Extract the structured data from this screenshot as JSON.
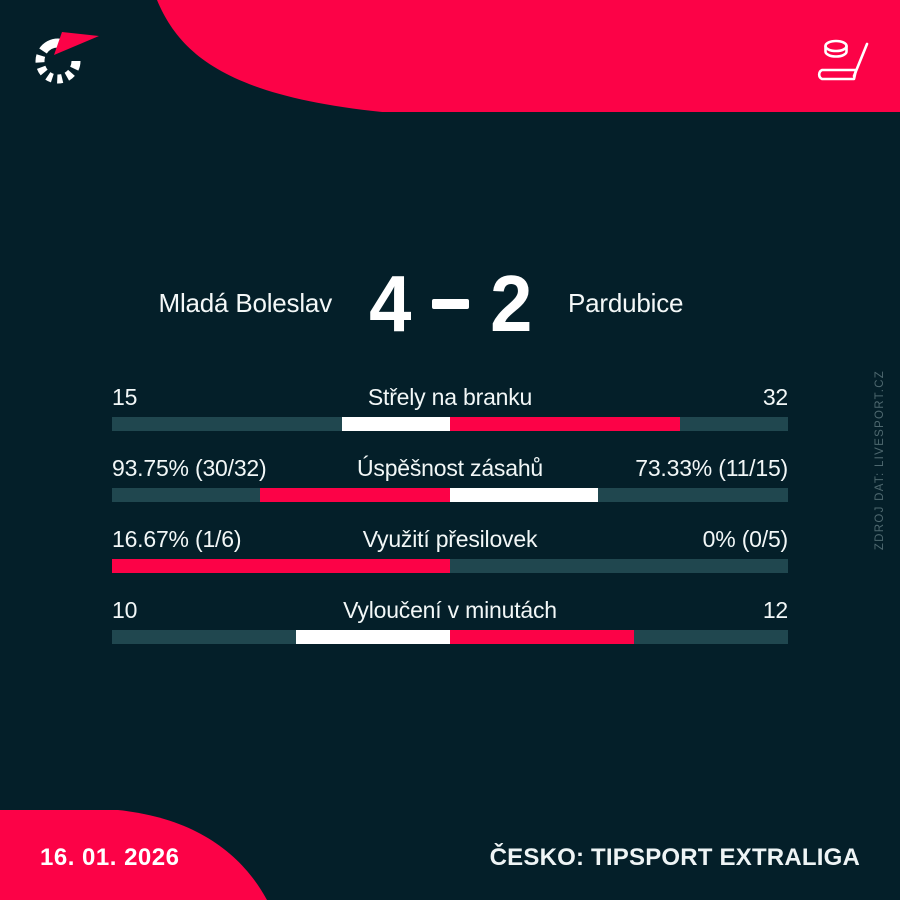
{
  "header": {
    "logo_icon": "livesport-spinner-logo",
    "sport_icon": "hockey-stick-and-puck"
  },
  "match": {
    "home_team": "Mladá Boleslav",
    "away_team": "Pardubice",
    "home_score": "4",
    "away_score": "2"
  },
  "stats": [
    {
      "label": "Střely na branku",
      "home_display": "15",
      "away_display": "32",
      "home_fill_pct": 31.9,
      "away_fill_pct": 68.1,
      "home_color": "white",
      "away_color": "red"
    },
    {
      "label": "Úspěšnost zásahů",
      "home_display": "93.75% (30/32)",
      "away_display": "73.33% (11/15)",
      "home_fill_pct": 56.1,
      "away_fill_pct": 43.9,
      "home_color": "red",
      "away_color": "white"
    },
    {
      "label": "Využití přesilovek",
      "home_display": "16.67% (1/6)",
      "away_display": "0% (0/5)",
      "home_fill_pct": 100,
      "away_fill_pct": 0,
      "home_color": "red",
      "away_color": "white"
    },
    {
      "label": "Vyloučení v minutách",
      "home_display": "10",
      "away_display": "12",
      "home_fill_pct": 45.5,
      "away_fill_pct": 54.5,
      "home_color": "white",
      "away_color": "red"
    }
  ],
  "footer": {
    "date": "16. 01. 2026",
    "league": "ČESKO: TIPSPORT EXTRALIGA"
  },
  "source_note": "ZDROJ DAT: LIVESPORT.CZ",
  "colors": {
    "background": "#041f29",
    "bar_track": "#20474f",
    "accent_red": "#fc0247",
    "text_white": "#ffffff",
    "muted_text": "#4e686f"
  },
  "chart_data": {
    "type": "bar",
    "title": "Mladá Boleslav 4 - 2 Pardubice",
    "subtitle": "ČESKO: TIPSPORT EXTRALIGA, 16. 01. 2026",
    "categories": [
      "Střely na branku",
      "Úspěšnost zásahů",
      "Využití přesilovek",
      "Vyloučení v minutách"
    ],
    "series": [
      {
        "name": "Mladá Boleslav",
        "values": [
          15,
          93.75,
          16.67,
          10
        ],
        "labels": [
          "15",
          "93.75% (30/32)",
          "16.67% (1/6)",
          "10"
        ]
      },
      {
        "name": "Pardubice",
        "values": [
          32,
          73.33,
          0,
          12
        ],
        "labels": [
          "32",
          "73.33% (11/15)",
          "0% (0/5)",
          "12"
        ]
      }
    ],
    "orientation": "horizontal-paired-from-center",
    "highlight_rule": "red segment marks the larger value, white the smaller",
    "legend_position": "none",
    "grid": false
  }
}
